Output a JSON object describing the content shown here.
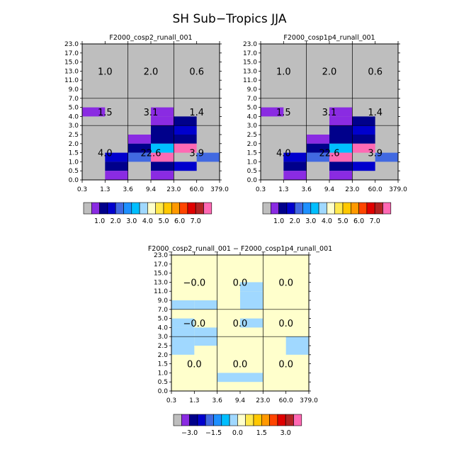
{
  "title": "SH Sub−Tropics JJA",
  "colors": {
    "background": "#ffffff",
    "panel_fill": "#bebebe",
    "diff_fill": "#ffffcc",
    "line": "#000000"
  },
  "main_palette": [
    "#bebebe",
    "#8a2be2",
    "#00008b",
    "#0000cd",
    "#4169e1",
    "#1e90ff",
    "#00bfff",
    "#a0d8ff",
    "#ffffcc",
    "#ffe84c",
    "#ffc800",
    "#ff9900",
    "#ff4500",
    "#e00000",
    "#b22222",
    "#ff69b4"
  ],
  "main_labels": [
    "1.0",
    "2.0",
    "3.0",
    "4.0",
    "5.0",
    "6.0",
    "7.0"
  ],
  "diff_palette": [
    "#bebebe",
    "#8a2be2",
    "#00008b",
    "#0000cd",
    "#4169e1",
    "#1e90ff",
    "#00bfff",
    "#a0d8ff",
    "#ffffcc",
    "#ffe84c",
    "#ffc800",
    "#ff9900",
    "#ff4500",
    "#e00000",
    "#b22222",
    "#ff69b4"
  ],
  "diff_labels": [
    "−3.0",
    "−1.5",
    "0.0",
    "1.5",
    "3.0"
  ],
  "chart_data": [
    {
      "type": "heatmap",
      "title": "F2000_cosp2_runall_001",
      "x_ticks": [
        "0.3",
        "1.3",
        "3.6",
        "9.4",
        "23.0",
        "60.0",
        "379.0"
      ],
      "y_ticks": [
        "0.0",
        "0.5",
        "1.0",
        "1.5",
        "2.0",
        "2.5",
        "3.0",
        "4.0",
        "5.0",
        "7.0",
        "9.0",
        "11.0",
        "13.0",
        "15.0",
        "17.0",
        "23.0"
      ],
      "region_values": [
        [
          "4.0",
          "22.6",
          "3.9"
        ],
        [
          "1.5",
          "3.1",
          "1.4"
        ],
        [
          "1.0",
          "2.0",
          "0.6"
        ]
      ],
      "cells": [
        [
          0,
          7,
          1
        ],
        [
          3,
          7,
          1
        ],
        [
          3,
          6,
          1
        ],
        [
          3,
          5,
          2
        ],
        [
          3,
          4,
          2
        ],
        [
          2,
          4,
          1
        ],
        [
          2,
          3,
          2
        ],
        [
          2,
          2,
          4
        ],
        [
          1,
          2,
          3
        ],
        [
          1,
          1,
          2
        ],
        [
          1,
          0,
          1
        ],
        [
          3,
          3,
          6
        ],
        [
          3,
          2,
          15
        ],
        [
          3,
          1,
          2
        ],
        [
          3,
          0,
          1
        ],
        [
          4,
          6,
          2
        ],
        [
          4,
          5,
          3
        ],
        [
          4,
          4,
          2
        ],
        [
          5,
          2,
          4
        ],
        [
          4,
          3,
          15
        ],
        [
          4,
          1,
          3
        ]
      ]
    },
    {
      "type": "heatmap",
      "title": "F2000_cosp1p4_runall_001",
      "x_ticks": [
        "0.3",
        "1.3",
        "3.6",
        "9.4",
        "23.0",
        "60.0",
        "379.0"
      ],
      "y_ticks": [
        "0.0",
        "0.5",
        "1.0",
        "1.5",
        "2.0",
        "2.5",
        "3.0",
        "4.0",
        "5.0",
        "7.0",
        "9.0",
        "11.0",
        "13.0",
        "15.0",
        "17.0",
        "23.0"
      ],
      "region_values": [
        [
          "4.0",
          "22.6",
          "3.9"
        ],
        [
          "1.5",
          "3.1",
          "1.4"
        ],
        [
          "1.0",
          "2.0",
          "0.6"
        ]
      ],
      "cells": [
        [
          0,
          7,
          1
        ],
        [
          3,
          7,
          1
        ],
        [
          3,
          6,
          1
        ],
        [
          3,
          5,
          2
        ],
        [
          3,
          4,
          2
        ],
        [
          2,
          4,
          1
        ],
        [
          2,
          3,
          2
        ],
        [
          2,
          2,
          4
        ],
        [
          1,
          2,
          3
        ],
        [
          1,
          1,
          2
        ],
        [
          1,
          0,
          1
        ],
        [
          3,
          3,
          6
        ],
        [
          3,
          2,
          15
        ],
        [
          3,
          1,
          2
        ],
        [
          3,
          0,
          1
        ],
        [
          4,
          6,
          2
        ],
        [
          4,
          5,
          3
        ],
        [
          4,
          4,
          2
        ],
        [
          5,
          2,
          4
        ],
        [
          4,
          3,
          15
        ],
        [
          4,
          1,
          3
        ]
      ]
    },
    {
      "type": "heatmap",
      "title": "F2000_cosp2_runall_001 − F2000_cosp1p4_runall_001",
      "x_ticks": [
        "0.3",
        "1.3",
        "3.6",
        "9.4",
        "23.0",
        "60.0",
        "379.0"
      ],
      "y_ticks": [
        "0.0",
        "0.5",
        "1.0",
        "1.5",
        "2.0",
        "2.5",
        "3.0",
        "4.0",
        "5.0",
        "7.0",
        "9.0",
        "11.0",
        "13.0",
        "15.0",
        "17.0",
        "23.0"
      ],
      "region_values": [
        [
          "0.0",
          "0.0",
          "0.0"
        ],
        [
          "−0.0",
          "0.0",
          "0.0"
        ],
        [
          "−0.0",
          "0.0",
          "0.0"
        ]
      ],
      "cells": [
        [
          0,
          9,
          7
        ],
        [
          1,
          9,
          7
        ],
        [
          3,
          9,
          7
        ],
        [
          3,
          10,
          7
        ],
        [
          3,
          11,
          7
        ],
        [
          0,
          7,
          7
        ],
        [
          0,
          6,
          7
        ],
        [
          1,
          6,
          7
        ],
        [
          3,
          7,
          7
        ],
        [
          0,
          5,
          7
        ],
        [
          1,
          5,
          7
        ],
        [
          0,
          4,
          7
        ],
        [
          5,
          4,
          7
        ],
        [
          5,
          5,
          7
        ],
        [
          2,
          1,
          7
        ],
        [
          3,
          1,
          7
        ]
      ]
    }
  ]
}
